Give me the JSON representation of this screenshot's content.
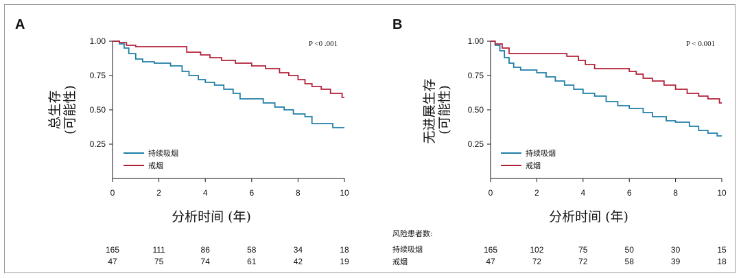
{
  "colors": {
    "smoker": "#1f7ea8",
    "quit": "#b2223a",
    "axis": "#111111"
  },
  "risk_header": "风险患者数:",
  "panels": [
    {
      "label": "A",
      "ylabel_lines": [
        "总生存",
        "(可能性)"
      ],
      "p_text": "P <0 .001",
      "legend": [
        "持续吸烟",
        "戒烟"
      ],
      "risk_row_labels": []
    },
    {
      "label": "B",
      "ylabel_lines": [
        "无进展生存",
        "(可能性)"
      ],
      "p_text": "P < 0.001",
      "legend": [
        "持续吸烟",
        "戒烟"
      ],
      "risk_row_labels": [
        "持续吸烟",
        "戒烟"
      ]
    }
  ],
  "chart_data": [
    {
      "type": "line",
      "title": "",
      "xlabel": "分析时间 (年)",
      "ylabel": "总生存 (可能性)",
      "xlim": [
        0,
        10
      ],
      "ylim": [
        0,
        1
      ],
      "xticks": [
        "0",
        "2",
        "4",
        "6",
        "8",
        "10"
      ],
      "yticks": [
        "0.25",
        "0.50",
        "0.75",
        "1.00"
      ],
      "step": true,
      "series": [
        {
          "name": "持续吸烟",
          "x": [
            0,
            0.3,
            0.5,
            0.7,
            1.0,
            1.3,
            1.8,
            2.5,
            3.0,
            3.3,
            3.7,
            4.0,
            4.4,
            4.8,
            5.2,
            5.5,
            6.5,
            7.0,
            7.4,
            7.8,
            8.3,
            8.6,
            9.5,
            10
          ],
          "y": [
            1.0,
            0.98,
            0.95,
            0.91,
            0.87,
            0.85,
            0.84,
            0.82,
            0.78,
            0.75,
            0.72,
            0.7,
            0.68,
            0.65,
            0.62,
            0.58,
            0.55,
            0.52,
            0.5,
            0.47,
            0.45,
            0.4,
            0.37,
            0.37
          ]
        },
        {
          "name": "戒烟",
          "x": [
            0,
            0.3,
            0.6,
            1.0,
            3.2,
            3.8,
            4.2,
            4.7,
            5.3,
            6.0,
            6.6,
            7.2,
            7.6,
            8.0,
            8.3,
            8.6,
            9.0,
            9.4,
            9.9,
            10
          ],
          "y": [
            1.0,
            0.99,
            0.97,
            0.96,
            0.92,
            0.9,
            0.88,
            0.86,
            0.84,
            0.82,
            0.8,
            0.77,
            0.75,
            0.72,
            0.69,
            0.67,
            0.65,
            0.62,
            0.59,
            0.59
          ]
        }
      ],
      "risk_table": {
        "x": [
          0,
          2,
          4,
          6,
          8,
          10
        ],
        "rows": [
          {
            "name": "持续吸烟",
            "values": [
              "165",
              "111",
              "86",
              "58",
              "34",
              "18"
            ]
          },
          {
            "name": "戒烟",
            "values": [
              "47",
              "75",
              "74",
              "61",
              "42",
              "19"
            ]
          }
        ]
      }
    },
    {
      "type": "line",
      "title": "",
      "xlabel": "分析时间 (年)",
      "ylabel": "无进展生存 (可能性)",
      "xlim": [
        0,
        10
      ],
      "ylim": [
        0,
        1
      ],
      "xticks": [
        "0",
        "2",
        "4",
        "6",
        "8",
        "10"
      ],
      "yticks": [
        "0.25",
        "0.50",
        "0.75",
        "1.00"
      ],
      "step": true,
      "series": [
        {
          "name": "持续吸烟",
          "x": [
            0,
            0.2,
            0.4,
            0.6,
            0.8,
            1.0,
            1.3,
            2.0,
            2.4,
            2.8,
            3.2,
            3.6,
            4.0,
            4.5,
            5.0,
            5.5,
            6.0,
            6.6,
            7.0,
            7.6,
            8.0,
            8.6,
            9.0,
            9.4,
            9.8,
            10
          ],
          "y": [
            1.0,
            0.97,
            0.93,
            0.88,
            0.84,
            0.81,
            0.79,
            0.77,
            0.74,
            0.71,
            0.68,
            0.65,
            0.62,
            0.6,
            0.56,
            0.53,
            0.51,
            0.48,
            0.45,
            0.42,
            0.41,
            0.38,
            0.35,
            0.33,
            0.31,
            0.31
          ]
        },
        {
          "name": "戒烟",
          "x": [
            0,
            0.2,
            0.5,
            0.8,
            3.3,
            3.8,
            4.1,
            4.5,
            6.0,
            6.3,
            6.6,
            7.0,
            7.5,
            8.0,
            8.5,
            9.0,
            9.4,
            9.9,
            10
          ],
          "y": [
            1.0,
            0.98,
            0.95,
            0.91,
            0.89,
            0.86,
            0.83,
            0.8,
            0.78,
            0.76,
            0.73,
            0.71,
            0.68,
            0.65,
            0.62,
            0.6,
            0.58,
            0.55,
            0.55
          ]
        }
      ],
      "risk_table": {
        "x": [
          0,
          2,
          4,
          6,
          8,
          10
        ],
        "rows": [
          {
            "name": "持续吸烟",
            "values": [
              "165",
              "102",
              "75",
              "50",
              "30",
              "15"
            ]
          },
          {
            "name": "戒烟",
            "values": [
              "47",
              "72",
              "72",
              "58",
              "39",
              "18"
            ]
          }
        ]
      }
    }
  ]
}
